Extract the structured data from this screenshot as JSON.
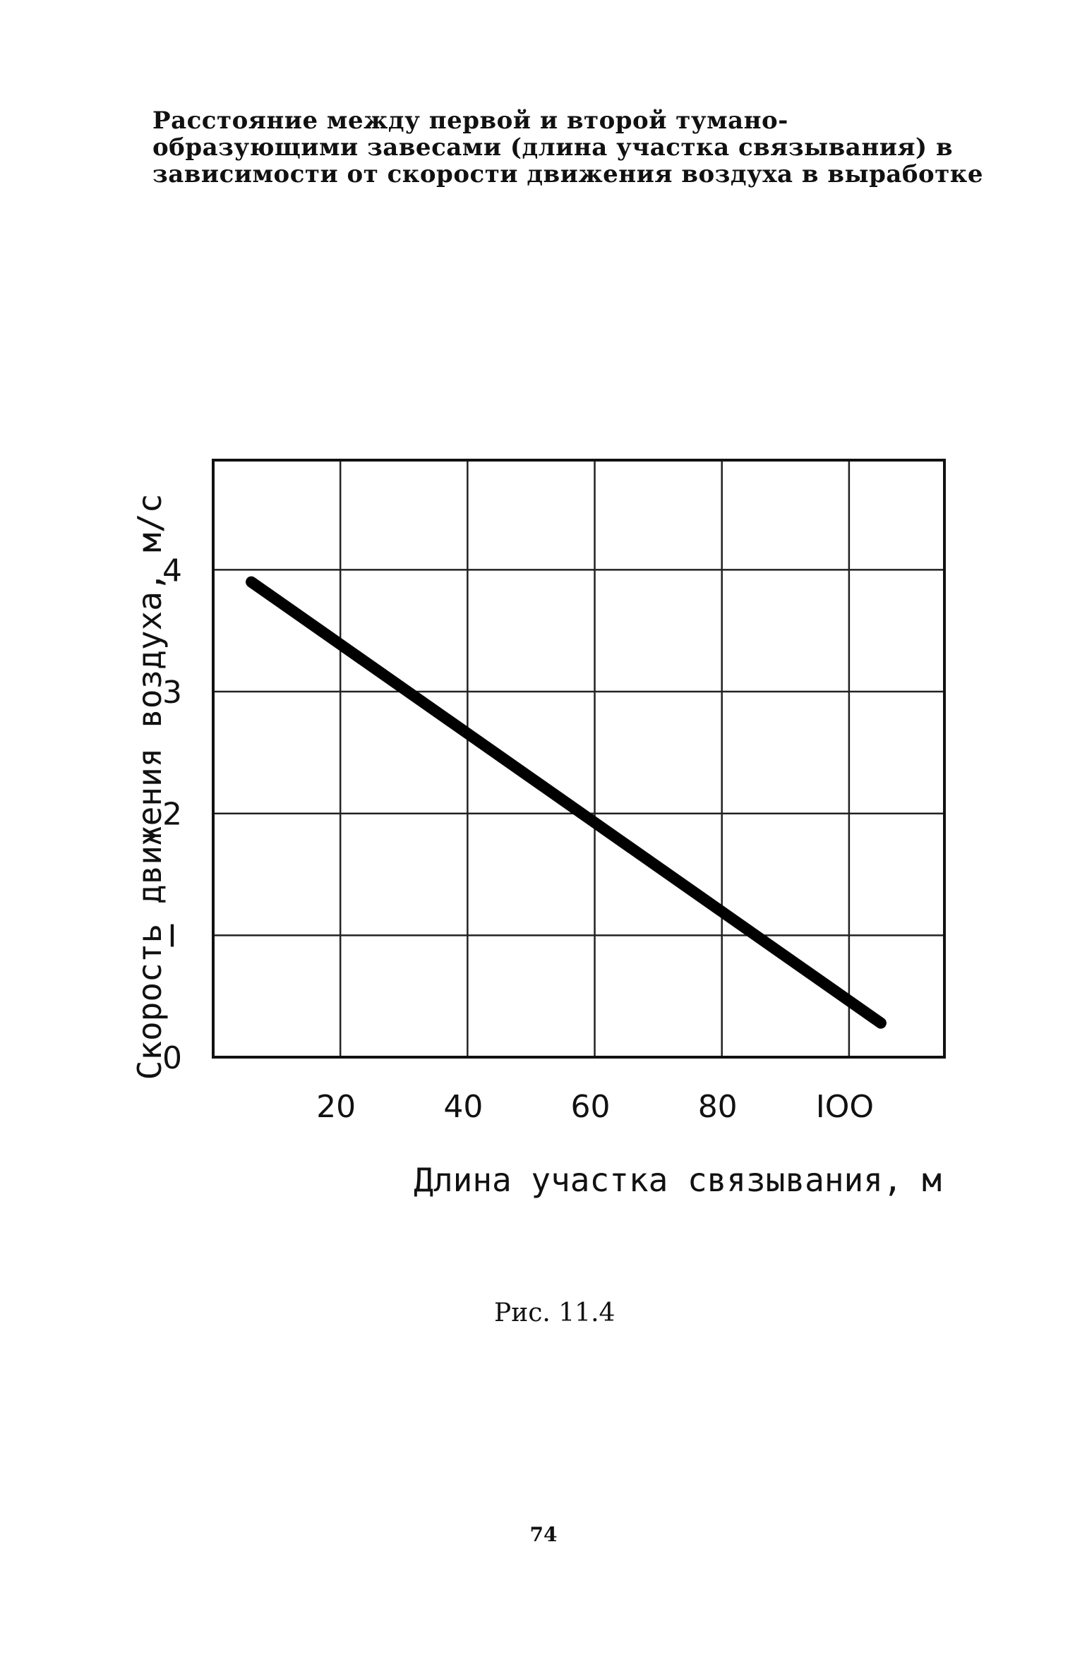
{
  "caption": {
    "line1": "Расстояние между первой и второй тумано-",
    "line2": "образующими завесами (длина участка связывания) в",
    "line3": "зависимости от  скорости движения воздуха в выработке"
  },
  "chart_data": {
    "type": "line",
    "title": "",
    "xlabel": "Длина участка связывания, м",
    "ylabel": "Скорость движения воздуха, м/с",
    "x_ticks": [
      "20",
      "40",
      "60",
      "80",
      "IOO"
    ],
    "y_ticks": [
      "0",
      "I",
      "2",
      "3",
      "4"
    ],
    "xlim": [
      0,
      115
    ],
    "ylim": [
      0,
      4.9
    ],
    "grid": true,
    "legend": "none",
    "series": [
      {
        "x": [
          6,
          105
        ],
        "y": [
          3.9,
          0.28
        ]
      }
    ],
    "line_color": "#000000"
  },
  "figure_label": "Рис. 11.4",
  "page_number": "74"
}
